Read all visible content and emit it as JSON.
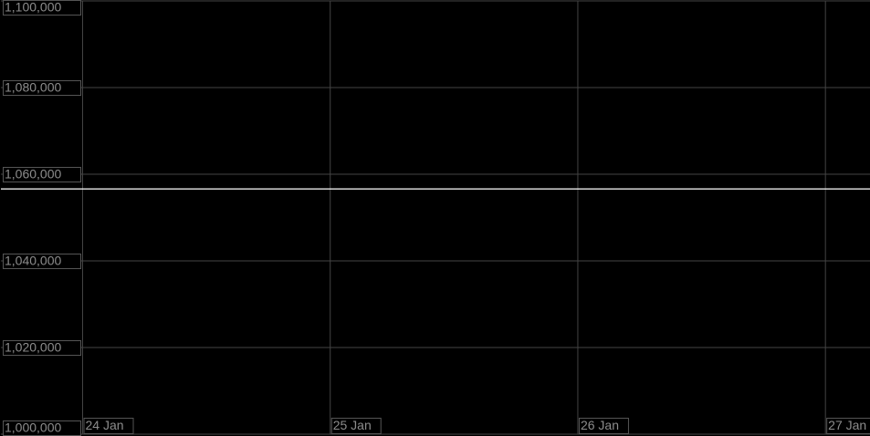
{
  "chart_data": {
    "type": "line",
    "x": [
      23.67,
      27.18
    ],
    "series": [
      {
        "color": "#ffffff",
        "values": [
          1056600,
          1056600
        ]
      }
    ],
    "xlim": [
      23.67,
      27.18
    ],
    "xticks": [
      {
        "value": 24,
        "label": "24 Jan"
      },
      {
        "value": 25,
        "label": "25 Jan"
      },
      {
        "value": 26,
        "label": "26 Jan"
      },
      {
        "value": 27,
        "label": "27 Jan"
      }
    ],
    "ylim": [
      1000000,
      1100000
    ],
    "yticks": [
      {
        "value": 1000000,
        "label": "1,000,000"
      },
      {
        "value": 1020000,
        "label": "1,020,000"
      },
      {
        "value": 1040000,
        "label": "1,040,000"
      },
      {
        "value": 1060000,
        "label": "1,060,000"
      },
      {
        "value": 1080000,
        "label": "1,080,000"
      },
      {
        "value": 1100000,
        "label": "1,100,000"
      }
    ],
    "grid": true
  }
}
